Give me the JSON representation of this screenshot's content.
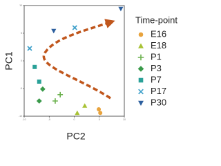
{
  "chart_data": {
    "type": "scatter",
    "xlabel": "PC2",
    "ylabel": "PC1",
    "legend_title": "Time-point",
    "xlim": [
      -10,
      10
    ],
    "ylim": [
      -10,
      10
    ],
    "xticks": [
      -10,
      -5,
      0,
      5,
      10
    ],
    "yticks": [
      -10,
      -5,
      0,
      5,
      10
    ],
    "series": [
      {
        "name": "E16",
        "color": "#e8a33d",
        "marker": "circle",
        "x": [
          4.9,
          5.2
        ],
        "values": [
          -8.75,
          -9.4
        ]
      },
      {
        "name": "E18",
        "color": "#a8c234",
        "marker": "triangle",
        "x": [
          0.6,
          2.1
        ],
        "values": [
          -9.4,
          -8.1
        ]
      },
      {
        "name": "P1",
        "color": "#6ab04c",
        "marker": "plus",
        "x": [
          -2.8,
          -3.8
        ],
        "values": [
          -6.1,
          -7.25
        ]
      },
      {
        "name": "P3",
        "color": "#3a9a4a",
        "marker": "diamond",
        "x": [
          -7.0,
          -6.3
        ],
        "values": [
          -7.25,
          -5.1
        ]
      },
      {
        "name": "P7",
        "color": "#2aa198",
        "marker": "square",
        "x": [
          -7.9,
          -7.0
        ],
        "values": [
          -1.1,
          -3.75
        ]
      },
      {
        "name": "P17",
        "color": "#3a9ec9",
        "marker": "x",
        "x": [
          -8.9,
          0.1
        ],
        "values": [
          2.25,
          6.0
        ]
      },
      {
        "name": "P30",
        "color": "#2c5f9e",
        "marker": "triangle-down",
        "x": [
          -4.1,
          9.3
        ],
        "values": [
          5.4,
          9.4
        ]
      }
    ]
  }
}
